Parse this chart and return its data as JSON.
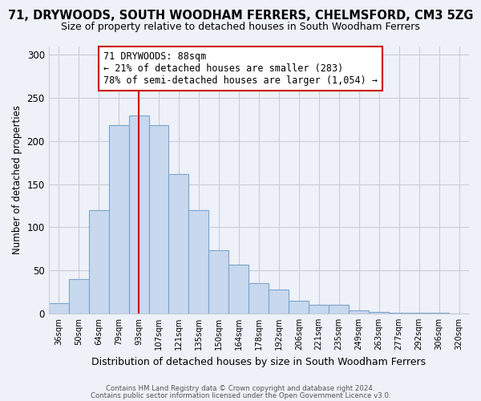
{
  "title": "71, DRYWOODS, SOUTH WOODHAM FERRERS, CHELMSFORD, CM3 5ZG",
  "subtitle": "Size of property relative to detached houses in South Woodham Ferrers",
  "xlabel": "Distribution of detached houses by size in South Woodham Ferrers",
  "ylabel": "Number of detached properties",
  "bar_labels": [
    "36sqm",
    "50sqm",
    "64sqm",
    "79sqm",
    "93sqm",
    "107sqm",
    "121sqm",
    "135sqm",
    "150sqm",
    "164sqm",
    "178sqm",
    "192sqm",
    "206sqm",
    "221sqm",
    "235sqm",
    "249sqm",
    "263sqm",
    "277sqm",
    "292sqm",
    "306sqm",
    "320sqm"
  ],
  "bar_values": [
    12,
    40,
    120,
    218,
    230,
    218,
    162,
    120,
    73,
    57,
    35,
    28,
    15,
    10,
    10,
    4,
    2,
    1,
    1,
    1,
    0
  ],
  "bar_color": "#c8d8ee",
  "bar_edge_color": "#7ca4cc",
  "vline_x_index": 4,
  "vline_color": "#cc0000",
  "annotation_text": "71 DRYWOODS: 88sqm\n← 21% of detached houses are smaller (283)\n78% of semi-detached houses are larger (1,054) →",
  "annotation_box_color": "#ffffff",
  "annotation_box_edge": "#cc0000",
  "ylim": [
    0,
    310
  ],
  "yticks": [
    0,
    50,
    100,
    150,
    200,
    250,
    300
  ],
  "footer_line1": "Contains HM Land Registry data © Crown copyright and database right 2024.",
  "footer_line2": "Contains public sector information licensed under the Open Government Licence v3.0.",
  "title_fontsize": 10.5,
  "subtitle_fontsize": 9,
  "bg_color": "#eef1f8",
  "plot_bg_color": "#eef1f8",
  "grid_color": "#c8cdd8"
}
